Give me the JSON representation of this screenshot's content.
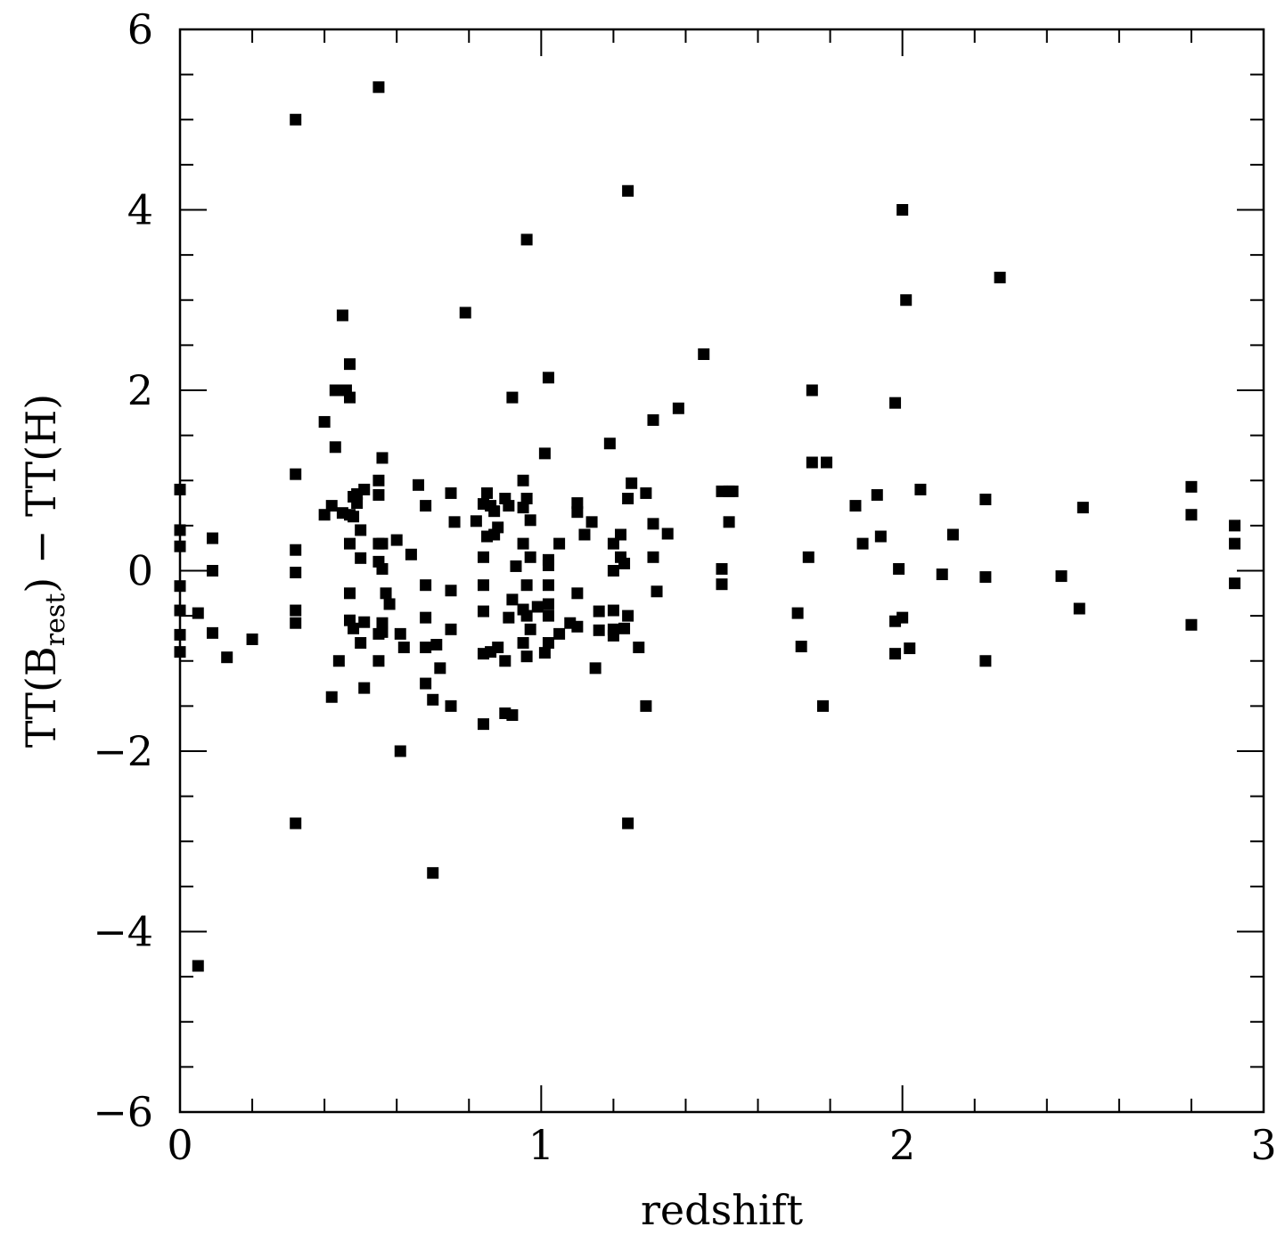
{
  "chart_data": {
    "type": "scatter",
    "title": "",
    "xlabel": "redshift",
    "ylabel": {
      "prefix": "TT(B",
      "subscript": "rest",
      "suffix": ")  −  TT(H)"
    },
    "xlim": [
      0,
      3
    ],
    "ylim": [
      -6,
      6
    ],
    "x_ticks": [
      "0",
      "1",
      "2",
      "3"
    ],
    "x_tick_values": [
      0,
      1,
      2,
      3
    ],
    "y_ticks": [
      "−6",
      "−4",
      "−2",
      "0",
      "2",
      "4",
      "6"
    ],
    "y_tick_values": [
      -6,
      -4,
      -2,
      0,
      2,
      4,
      6
    ],
    "x_minor_step": 0.2,
    "y_minor_step": 0.5,
    "grid": false,
    "legend": "none",
    "marker": "square",
    "marker_color": "#000000",
    "series": [
      {
        "points": [
          [
            0.0,
            0.9
          ],
          [
            0.0,
            0.45
          ],
          [
            0.0,
            0.27
          ],
          [
            0.0,
            -0.17
          ],
          [
            0.0,
            -0.44
          ],
          [
            0.0,
            -0.71
          ],
          [
            0.0,
            -0.9
          ],
          [
            0.05,
            -4.38
          ],
          [
            0.05,
            -0.47
          ],
          [
            0.09,
            0.36
          ],
          [
            0.09,
            0.0
          ],
          [
            0.09,
            -0.69
          ],
          [
            0.13,
            -0.96
          ],
          [
            0.2,
            -0.76
          ],
          [
            0.32,
            5.0
          ],
          [
            0.32,
            1.07
          ],
          [
            0.32,
            0.23
          ],
          [
            0.32,
            -0.02
          ],
          [
            0.32,
            -0.44
          ],
          [
            0.32,
            -0.58
          ],
          [
            0.32,
            -2.8
          ],
          [
            0.4,
            1.65
          ],
          [
            0.4,
            0.62
          ],
          [
            0.42,
            0.72
          ],
          [
            0.42,
            -1.4
          ],
          [
            0.43,
            2.0
          ],
          [
            0.43,
            1.37
          ],
          [
            0.44,
            2.0
          ],
          [
            0.44,
            -1.0
          ],
          [
            0.45,
            2.83
          ],
          [
            0.45,
            0.64
          ],
          [
            0.46,
            2.0
          ],
          [
            0.47,
            2.29
          ],
          [
            0.47,
            1.92
          ],
          [
            0.47,
            0.62
          ],
          [
            0.47,
            0.3
          ],
          [
            0.47,
            -0.25
          ],
          [
            0.47,
            -0.55
          ],
          [
            0.48,
            0.82
          ],
          [
            0.48,
            0.6
          ],
          [
            0.48,
            -0.64
          ],
          [
            0.49,
            0.75
          ],
          [
            0.49,
            0.85
          ],
          [
            0.5,
            0.45
          ],
          [
            0.5,
            0.14
          ],
          [
            0.5,
            -0.8
          ],
          [
            0.51,
            0.9
          ],
          [
            0.51,
            -0.57
          ],
          [
            0.51,
            -1.3
          ],
          [
            0.55,
            5.36
          ],
          [
            0.55,
            1.0
          ],
          [
            0.55,
            0.84
          ],
          [
            0.55,
            0.3
          ],
          [
            0.55,
            0.1
          ],
          [
            0.55,
            -0.7
          ],
          [
            0.55,
            -1.0
          ],
          [
            0.56,
            1.25
          ],
          [
            0.56,
            0.3
          ],
          [
            0.56,
            0.02
          ],
          [
            0.56,
            -0.58
          ],
          [
            0.56,
            -0.68
          ],
          [
            0.57,
            -0.25
          ],
          [
            0.58,
            -0.37
          ],
          [
            0.6,
            0.34
          ],
          [
            0.61,
            -0.7
          ],
          [
            0.61,
            -2.0
          ],
          [
            0.62,
            -0.85
          ],
          [
            0.64,
            0.18
          ],
          [
            0.66,
            0.95
          ],
          [
            0.68,
            0.72
          ],
          [
            0.68,
            -0.16
          ],
          [
            0.68,
            -0.52
          ],
          [
            0.68,
            -0.85
          ],
          [
            0.68,
            -1.25
          ],
          [
            0.7,
            -1.43
          ],
          [
            0.7,
            -3.35
          ],
          [
            0.71,
            -0.82
          ],
          [
            0.72,
            -1.08
          ],
          [
            0.75,
            0.86
          ],
          [
            0.75,
            -0.22
          ],
          [
            0.75,
            -0.65
          ],
          [
            0.75,
            -1.5
          ],
          [
            0.76,
            0.54
          ],
          [
            0.79,
            2.86
          ],
          [
            0.82,
            0.55
          ],
          [
            0.84,
            0.74
          ],
          [
            0.84,
            0.15
          ],
          [
            0.84,
            -0.16
          ],
          [
            0.84,
            -0.45
          ],
          [
            0.84,
            -0.92
          ],
          [
            0.84,
            -1.7
          ],
          [
            0.85,
            0.86
          ],
          [
            0.85,
            0.38
          ],
          [
            0.86,
            0.72
          ],
          [
            0.86,
            -0.9
          ],
          [
            0.87,
            0.66
          ],
          [
            0.87,
            0.4
          ],
          [
            0.88,
            0.48
          ],
          [
            0.88,
            -0.85
          ],
          [
            0.9,
            0.8
          ],
          [
            0.9,
            -1.0
          ],
          [
            0.9,
            -1.58
          ],
          [
            0.91,
            0.72
          ],
          [
            0.91,
            -0.52
          ],
          [
            0.92,
            1.92
          ],
          [
            0.92,
            -0.32
          ],
          [
            0.92,
            -1.6
          ],
          [
            0.93,
            0.05
          ],
          [
            0.95,
            1.0
          ],
          [
            0.95,
            0.7
          ],
          [
            0.95,
            0.3
          ],
          [
            0.95,
            -0.43
          ],
          [
            0.95,
            -0.8
          ],
          [
            0.96,
            3.67
          ],
          [
            0.96,
            0.8
          ],
          [
            0.96,
            -0.16
          ],
          [
            0.96,
            -0.5
          ],
          [
            0.96,
            -0.95
          ],
          [
            0.97,
            0.56
          ],
          [
            0.97,
            0.15
          ],
          [
            0.97,
            -0.65
          ],
          [
            0.99,
            -0.4
          ],
          [
            1.01,
            1.3
          ],
          [
            1.01,
            -0.91
          ],
          [
            1.02,
            2.14
          ],
          [
            1.02,
            0.12
          ],
          [
            1.02,
            0.06
          ],
          [
            1.02,
            -0.16
          ],
          [
            1.02,
            -0.37
          ],
          [
            1.02,
            -0.5
          ],
          [
            1.02,
            -0.8
          ],
          [
            1.05,
            0.3
          ],
          [
            1.05,
            -0.7
          ],
          [
            1.08,
            -0.58
          ],
          [
            1.1,
            0.75
          ],
          [
            1.1,
            0.65
          ],
          [
            1.1,
            -0.25
          ],
          [
            1.1,
            -0.62
          ],
          [
            1.12,
            0.4
          ],
          [
            1.14,
            0.54
          ],
          [
            1.15,
            -1.08
          ],
          [
            1.16,
            -0.45
          ],
          [
            1.16,
            -0.66
          ],
          [
            1.19,
            1.41
          ],
          [
            1.2,
            0.3
          ],
          [
            1.2,
            0.0
          ],
          [
            1.2,
            -0.44
          ],
          [
            1.2,
            -0.65
          ],
          [
            1.2,
            -0.72
          ],
          [
            1.22,
            0.15
          ],
          [
            1.22,
            0.4
          ],
          [
            1.23,
            0.08
          ],
          [
            1.23,
            -0.64
          ],
          [
            1.24,
            4.21
          ],
          [
            1.24,
            0.8
          ],
          [
            1.24,
            -0.5
          ],
          [
            1.24,
            -2.8
          ],
          [
            1.25,
            0.97
          ],
          [
            1.27,
            -0.85
          ],
          [
            1.29,
            0.86
          ],
          [
            1.29,
            -1.5
          ],
          [
            1.31,
            1.67
          ],
          [
            1.31,
            0.52
          ],
          [
            1.31,
            0.15
          ],
          [
            1.32,
            -0.23
          ],
          [
            1.35,
            0.41
          ],
          [
            1.38,
            1.8
          ],
          [
            1.45,
            2.4
          ],
          [
            1.5,
            0.88
          ],
          [
            1.5,
            0.02
          ],
          [
            1.5,
            -0.15
          ],
          [
            1.52,
            0.88
          ],
          [
            1.52,
            0.54
          ],
          [
            1.53,
            0.88
          ],
          [
            1.71,
            -0.47
          ],
          [
            1.72,
            -0.84
          ],
          [
            1.74,
            0.15
          ],
          [
            1.75,
            2.0
          ],
          [
            1.75,
            1.2
          ],
          [
            1.78,
            -1.5
          ],
          [
            1.79,
            1.2
          ],
          [
            1.87,
            0.72
          ],
          [
            1.89,
            0.3
          ],
          [
            1.93,
            0.84
          ],
          [
            1.94,
            0.38
          ],
          [
            1.98,
            1.86
          ],
          [
            1.98,
            -0.56
          ],
          [
            1.98,
            -0.92
          ],
          [
            1.99,
            0.02
          ],
          [
            2.0,
            4.0
          ],
          [
            2.0,
            -0.52
          ],
          [
            2.01,
            3.0
          ],
          [
            2.02,
            -0.86
          ],
          [
            2.05,
            0.9
          ],
          [
            2.11,
            -0.04
          ],
          [
            2.14,
            0.4
          ],
          [
            2.23,
            0.79
          ],
          [
            2.23,
            -0.07
          ],
          [
            2.23,
            -1.0
          ],
          [
            2.27,
            3.25
          ],
          [
            2.44,
            -0.06
          ],
          [
            2.49,
            -0.42
          ],
          [
            2.5,
            0.7
          ],
          [
            2.8,
            0.93
          ],
          [
            2.8,
            0.62
          ],
          [
            2.8,
            -0.6
          ],
          [
            2.92,
            0.5
          ],
          [
            2.92,
            0.3
          ],
          [
            2.92,
            -0.14
          ]
        ]
      }
    ]
  }
}
